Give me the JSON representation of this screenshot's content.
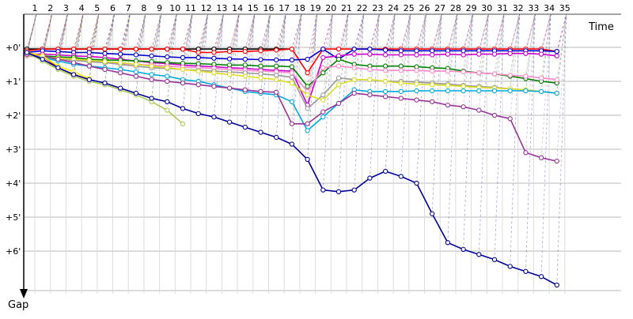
{
  "chart_data": {
    "type": "line",
    "title": "",
    "xlabel": "Time",
    "ylabel": "Gap",
    "x_ticks": [
      "1",
      "2",
      "3",
      "4",
      "5",
      "6",
      "7",
      "8",
      "9",
      "10",
      "11",
      "12",
      "13",
      "14",
      "15",
      "16",
      "17",
      "18",
      "19",
      "20",
      "21",
      "22",
      "23",
      "24",
      "25",
      "26",
      "27",
      "28",
      "29",
      "30",
      "31",
      "32",
      "33",
      "34",
      "35"
    ],
    "y_ticks": [
      "+0'",
      "+1'",
      "+2'",
      "+3'",
      "+4'",
      "+5'",
      "+6'"
    ],
    "y_inverted": true,
    "grid": true,
    "series": [
      {
        "color": "#000000",
        "values": [
          0.05,
          0.05,
          0.05,
          0.05,
          0.05,
          0.05,
          0.05,
          0.05,
          0.05,
          0.05,
          0.05,
          0.05,
          0.05,
          0.05,
          0.05,
          0.05,
          0.05,
          0.05
        ]
      },
      {
        "color": "#ff0000",
        "values": [
          0.1,
          0.05,
          0.05,
          0.05,
          0.05,
          0.05,
          0.05,
          0.05,
          0.05,
          0.05,
          0.05,
          0.15,
          0.15,
          0.12,
          0.12,
          0.1,
          0.08,
          0.05,
          0.75,
          0.05,
          0.05,
          0.05,
          0.05,
          0.05,
          0.05,
          0.05,
          0.05,
          0.05,
          0.05,
          0.05,
          0.05,
          0.05,
          0.05,
          0.05,
          0.12
        ]
      },
      {
        "color": "#0000cc",
        "values": [
          0.15,
          0.1,
          0.12,
          0.15,
          0.15,
          0.18,
          0.2,
          0.22,
          0.25,
          0.28,
          0.3,
          0.3,
          0.32,
          0.34,
          0.35,
          0.36,
          0.37,
          0.37,
          0.35,
          0.05,
          0.35,
          0.05,
          0.05,
          0.08,
          0.1,
          0.1,
          0.1,
          0.1,
          0.1,
          0.1,
          0.1,
          0.1,
          0.1,
          0.1,
          0.12
        ]
      },
      {
        "color": "#cc00cc",
        "values": [
          0.2,
          0.2,
          0.22,
          0.25,
          0.27,
          0.3,
          0.35,
          0.4,
          0.45,
          0.48,
          0.52,
          0.55,
          0.57,
          0.6,
          0.62,
          0.65,
          0.68,
          0.7,
          1.7,
          0.3,
          0.25,
          0.2,
          0.2,
          0.22,
          0.22,
          0.22,
          0.22,
          0.2,
          0.22,
          0.2,
          0.2,
          0.18,
          0.18,
          0.2,
          0.25
        ]
      },
      {
        "color": "#008000",
        "values": [
          0.2,
          0.25,
          0.28,
          0.3,
          0.35,
          0.37,
          0.38,
          0.4,
          0.42,
          0.45,
          0.47,
          0.48,
          0.5,
          0.52,
          0.52,
          0.55,
          0.55,
          0.57,
          1.15,
          0.75,
          0.35,
          0.5,
          0.55,
          0.55,
          0.55,
          0.57,
          0.6,
          0.62,
          0.7,
          0.75,
          0.78,
          0.85,
          0.92,
          1.0,
          1.05
        ]
      },
      {
        "color": "#ff88cc",
        "values": [
          0.25,
          0.3,
          0.35,
          0.38,
          0.42,
          0.45,
          0.48,
          0.5,
          0.52,
          0.55,
          0.58,
          0.6,
          0.62,
          0.65,
          0.68,
          0.7,
          0.72,
          0.75,
          1.3,
          0.6,
          0.55,
          0.6,
          0.65,
          0.68,
          0.68,
          0.68,
          0.7,
          0.7,
          0.72,
          0.75,
          0.78,
          0.82,
          0.85,
          0.9,
          0.95
        ]
      },
      {
        "color": "#999999",
        "values": [
          0.22,
          0.3,
          0.35,
          0.38,
          0.42,
          0.45,
          0.5,
          0.55,
          0.6,
          0.62,
          0.65,
          0.68,
          0.7,
          0.72,
          0.75,
          0.78,
          0.82,
          0.88,
          1.8,
          1.4,
          0.9,
          0.95,
          0.95,
          1.0,
          1.0,
          1.02,
          1.05,
          1.08,
          1.12,
          1.15,
          1.18,
          1.22,
          1.25,
          1.3,
          1.35
        ]
      },
      {
        "color": "#dddd22",
        "values": [
          0.22,
          0.28,
          0.32,
          0.35,
          0.38,
          0.42,
          0.45,
          0.5,
          0.55,
          0.6,
          0.65,
          0.7,
          0.75,
          0.8,
          0.85,
          0.9,
          0.95,
          1.05,
          1.4,
          1.55,
          1.1,
          0.95,
          0.95,
          1.0,
          1.05,
          1.08,
          1.1,
          1.12,
          1.15,
          1.18,
          1.2,
          1.22,
          1.25,
          1.3,
          1.35
        ]
      },
      {
        "color": "#00aadd",
        "values": [
          0.2,
          0.3,
          0.4,
          0.5,
          0.55,
          0.6,
          0.65,
          0.72,
          0.8,
          0.85,
          0.95,
          1.0,
          1.1,
          1.2,
          1.3,
          1.35,
          1.4,
          1.6,
          2.45,
          2.05,
          1.65,
          1.25,
          1.3,
          1.3,
          1.3,
          1.28,
          1.28,
          1.28,
          1.28,
          1.28,
          1.28,
          1.28,
          1.28,
          1.3,
          1.35
        ]
      },
      {
        "color": "#993399",
        "values": [
          0.2,
          0.25,
          0.35,
          0.45,
          0.55,
          0.65,
          0.75,
          0.85,
          0.95,
          1.0,
          1.05,
          1.1,
          1.15,
          1.2,
          1.25,
          1.3,
          1.32,
          2.25,
          2.25,
          1.9,
          1.65,
          1.35,
          1.4,
          1.45,
          1.5,
          1.55,
          1.6,
          1.7,
          1.75,
          1.85,
          2.0,
          2.1,
          3.1,
          3.25,
          3.35
        ]
      },
      {
        "color": "#cc1111",
        "values": [
          0.15,
          0.25,
          0.6,
          0.8,
          0.95
        ]
      },
      {
        "color": "#ffee00",
        "values": [
          0.15,
          0.25,
          0.55,
          0.72,
          0.92
        ]
      },
      {
        "color": "#aacc55",
        "values": [
          0.15,
          0.4,
          0.65,
          0.85,
          1.0,
          1.1,
          1.25,
          1.4,
          1.6,
          1.85,
          2.25
        ]
      },
      {
        "color": "#000099",
        "values": [
          0.15,
          0.35,
          0.6,
          0.8,
          0.95,
          1.05,
          1.2,
          1.35,
          1.5,
          1.6,
          1.8,
          1.95,
          2.05,
          2.2,
          2.35,
          2.5,
          2.65,
          2.85,
          3.3,
          4.2,
          4.25,
          4.2,
          3.85,
          3.65,
          3.8,
          4.0,
          4.9,
          5.75,
          5.95,
          6.1,
          6.25,
          6.45,
          6.6,
          6.75,
          7.0
        ]
      }
    ]
  }
}
